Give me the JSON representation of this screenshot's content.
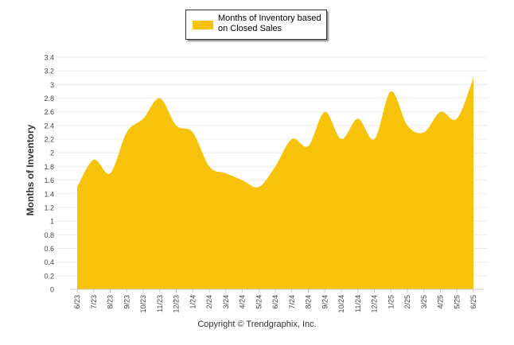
{
  "legend": {
    "label": "Months of Inventory based on Closed Sales",
    "color": "#f7c30a"
  },
  "copyright": "Copyright © Trendgraphix, Inc.",
  "chart_data": {
    "type": "area",
    "ylabel": "Months of Inventory",
    "ylim": [
      0,
      3.4
    ],
    "yticks": [
      "0",
      "0.2",
      "0.4",
      "0.6",
      "0.8",
      "1",
      "1.2",
      "1.4",
      "1.6",
      "1.8",
      "2",
      "2.2",
      "2.4",
      "2.6",
      "2.8",
      "3",
      "3.2",
      "3.4"
    ],
    "grid": true,
    "categories": [
      "6/23",
      "7/23",
      "8/23",
      "9/23",
      "10/23",
      "11/23",
      "12/23",
      "1/24",
      "2/24",
      "3/24",
      "4/24",
      "5/24",
      "6/24",
      "7/24",
      "8/24",
      "9/24",
      "10/24",
      "11/24",
      "12/24",
      "1/25",
      "2/25",
      "3/25",
      "4/25",
      "5/25",
      "6/25"
    ],
    "series": [
      {
        "name": "Months of Inventory based on Closed Sales",
        "color": "#f7c30a",
        "values": [
          1.5,
          1.9,
          1.7,
          2.3,
          2.5,
          2.8,
          2.4,
          2.3,
          1.8,
          1.7,
          1.6,
          1.5,
          1.8,
          2.2,
          2.1,
          2.6,
          2.2,
          2.5,
          2.2,
          2.9,
          2.4,
          2.3,
          2.6,
          2.5,
          3.1
        ]
      }
    ]
  }
}
